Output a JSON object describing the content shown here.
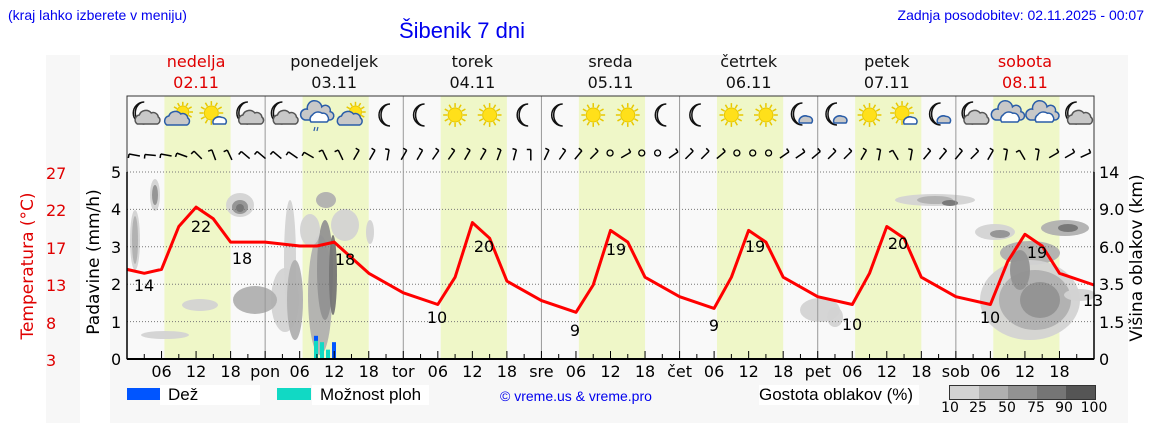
{
  "header": {
    "hint": "(kraj lahko izberete v meniju)",
    "title": "Šibenik 7 dni",
    "updated": "Zadnja posodobitev: 02.11.2025 - 00:07"
  },
  "days": [
    {
      "name": "nedelja",
      "date": "02.11",
      "weekend": true
    },
    {
      "name": "ponedeljek",
      "date": "03.11",
      "weekend": false
    },
    {
      "name": "torek",
      "date": "04.11",
      "weekend": false
    },
    {
      "name": "sreda",
      "date": "05.11",
      "weekend": false
    },
    {
      "name": "četrtek",
      "date": "06.11",
      "weekend": false
    },
    {
      "name": "petek",
      "date": "07.11",
      "weekend": false
    },
    {
      "name": "sobota",
      "date": "08.11",
      "weekend": true
    }
  ],
  "axes": {
    "temperature_label": "Temperatura (°C)",
    "precip_label": "Padavine (mm/h)",
    "cloud_height_label": "Višina oblakov (km)",
    "temperature_ticks": [
      "27",
      "22",
      "17",
      "13",
      "8",
      "3"
    ],
    "precip_ticks": [
      "5",
      "4",
      "3",
      "2",
      "1",
      "0"
    ],
    "cloud_height_ticks": [
      "14",
      "9.0",
      "6.0",
      "3.5",
      "1.5",
      "0"
    ],
    "x_ticks": [
      "06",
      "12",
      "18",
      "pon",
      "06",
      "12",
      "18",
      "tor",
      "06",
      "12",
      "18",
      "sre",
      "06",
      "12",
      "18",
      "čet",
      "06",
      "12",
      "18",
      "pet",
      "06",
      "12",
      "18",
      "sob",
      "06",
      "12",
      "18"
    ]
  },
  "weather_icons": [
    "moon-cloud-icon",
    "sun-cloud-icon",
    "sun-small-cloud-icon",
    "moon-cloud-icon",
    "moon-cloud-icon",
    "cloud-rain-icon",
    "sun-cloud-icon",
    "moon-icon",
    "moon-icon",
    "sun-icon",
    "sun-icon",
    "moon-icon",
    "moon-icon",
    "sun-icon",
    "sun-icon",
    "moon-icon",
    "moon-icon",
    "sun-icon",
    "sun-icon",
    "moon-small-cloud-icon",
    "moon-small-cloud-icon",
    "sun-icon",
    "sun-small-cloud-icon",
    "moon-small-cloud-icon",
    "moon-cloud-icon",
    "cloud-overcast-icon",
    "cloud-overcast-icon",
    "moon-cloud-icon"
  ],
  "legend": {
    "rain_label": "Dež",
    "rain_color": "#0055ff",
    "shower_label": "Možnost ploh",
    "shower_color": "#11d9c4",
    "copyright": "© vreme.us & vreme.pro",
    "cloud_density_label": "Gostota oblakov (%)",
    "cloud_density_ticks": [
      "10",
      "25",
      "50",
      "75",
      "90",
      "100"
    ],
    "cloud_density_colors": [
      "#d3d3d3",
      "#b0b0b0",
      "#929292",
      "#757575",
      "#555555"
    ]
  },
  "colors": {
    "temperature_line": "#ff0000",
    "daylight_band": "#eff7c8",
    "night_band": "#f9f9f9",
    "weekend_text": "#e00000"
  },
  "chart_data": {
    "type": "line",
    "title": "Šibenik 7 dni",
    "xlabel": "",
    "ylabel": "Temperatura (°C)",
    "ylim_temperature": [
      3,
      27
    ],
    "ylim_precip": [
      0,
      5
    ],
    "x_range": [
      "2025-11-02 00:00",
      "2025-11-09 00:00"
    ],
    "series": [
      {
        "name": "Temperatura (°C)",
        "color": "#ff0000",
        "hours": [
          0,
          3,
          6,
          9,
          12,
          15,
          18,
          24,
          30,
          33,
          36,
          39,
          42,
          48,
          54,
          57,
          60,
          63,
          66,
          72,
          78,
          81,
          84,
          87,
          90,
          96,
          102,
          105,
          108,
          111,
          114,
          120,
          126,
          129,
          132,
          135,
          138,
          144,
          150,
          153,
          156,
          159,
          162,
          168
        ],
        "values": [
          14.5,
          14,
          14.5,
          20,
          22.5,
          21,
          18,
          18,
          17.5,
          17.5,
          18,
          16,
          14,
          11.5,
          10,
          13.5,
          20.5,
          18.5,
          13,
          10.5,
          9,
          12.5,
          19.5,
          18,
          13.5,
          11,
          9.5,
          13.5,
          19.5,
          18,
          13.5,
          11,
          10,
          14,
          20,
          18.5,
          13.5,
          11,
          10,
          15.5,
          19,
          17.5,
          14,
          12.5
        ]
      },
      {
        "name": "Dež (mm/h)",
        "color": "#0055ff",
        "hours": [
          33,
          36
        ],
        "values": [
          0.4,
          0.45
        ]
      },
      {
        "name": "Možnost ploh (mm/h)",
        "color": "#11d9c4",
        "hours": [
          33,
          34,
          35
        ],
        "values": [
          0.55,
          0.45,
          0.25
        ]
      }
    ],
    "annotations": {
      "min_max_labels": [
        {
          "hour": 3,
          "value": "14"
        },
        {
          "hour": 12,
          "value": "22"
        },
        {
          "hour": 19,
          "value": "18"
        },
        {
          "hour": 38,
          "value": "18"
        },
        {
          "hour": 54,
          "value": "10"
        },
        {
          "hour": 60,
          "value": "20"
        },
        {
          "hour": 78,
          "value": "9"
        },
        {
          "hour": 84,
          "value": "19"
        },
        {
          "hour": 102,
          "value": "9"
        },
        {
          "hour": 108,
          "value": "19"
        },
        {
          "hour": 126,
          "value": "10"
        },
        {
          "hour": 132,
          "value": "20"
        },
        {
          "hour": 150,
          "value": "10"
        },
        {
          "hour": 156,
          "value": "19"
        },
        {
          "hour": 167,
          "value": "13"
        }
      ]
    },
    "grid": true,
    "legend_position": "bottom"
  }
}
